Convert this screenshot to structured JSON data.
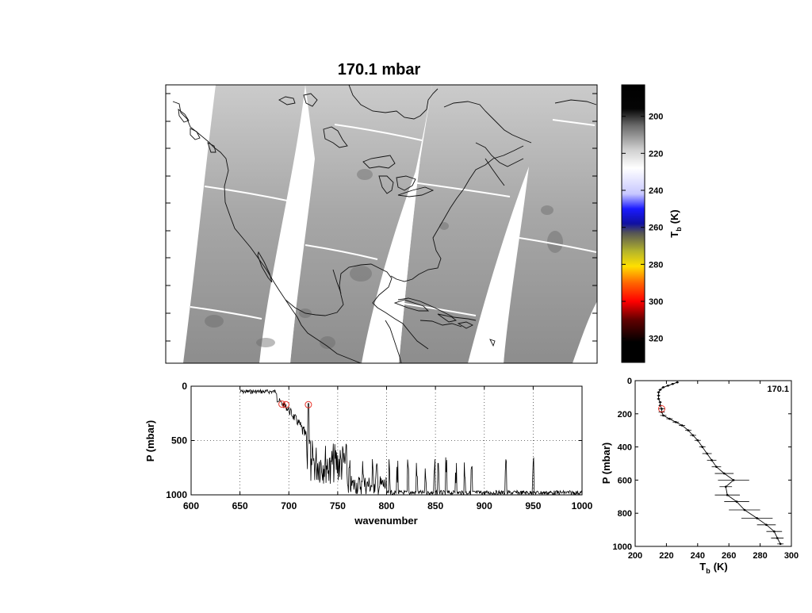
{
  "title": "170.1 mbar",
  "colors": {
    "background": "#ffffff",
    "swath_gray": "#9a9a9a",
    "marker": "#e8352b",
    "line": "#000000"
  },
  "colorbar": {
    "label_main": "T",
    "label_sub": "b",
    "label_unit": "(K)",
    "ticks": [
      "200",
      "220",
      "240",
      "260",
      "280",
      "300",
      "320"
    ],
    "range": [
      183,
      333
    ],
    "stops": [
      {
        "v": 183,
        "c": "#000000"
      },
      {
        "v": 196,
        "c": "#050505"
      },
      {
        "v": 205,
        "c": "#6a6a6a"
      },
      {
        "v": 218,
        "c": "#cfcfcf"
      },
      {
        "v": 228,
        "c": "#ffffff"
      },
      {
        "v": 242,
        "c": "#c7c7ff"
      },
      {
        "v": 250,
        "c": "#1a1aff"
      },
      {
        "v": 258,
        "c": "#1010a0"
      },
      {
        "v": 263,
        "c": "#555555"
      },
      {
        "v": 273,
        "c": "#b5b52a"
      },
      {
        "v": 281,
        "c": "#ffe000"
      },
      {
        "v": 290,
        "c": "#ff6600"
      },
      {
        "v": 300,
        "c": "#ff0000"
      },
      {
        "v": 310,
        "c": "#600000"
      },
      {
        "v": 322,
        "c": "#000000"
      },
      {
        "v": 333,
        "c": "#000000"
      }
    ]
  },
  "chart_data": [
    {
      "type": "heatmap",
      "name": "map",
      "title": "170.1 mbar",
      "description_units": "brightness temperature (K)",
      "value_range": [
        214,
        228
      ],
      "orbit_swaths": 4,
      "grid": false
    },
    {
      "type": "line",
      "name": "weighting-peaks",
      "xlabel": "wavenumber",
      "ylabel": "P (mbar)",
      "xlim": [
        600,
        1000
      ],
      "ylim": [
        1000,
        0
      ],
      "xticks": [
        "600",
        "650",
        "700",
        "750",
        "800",
        "850",
        "900",
        "950",
        "1000"
      ],
      "yticks": [
        "0",
        "500",
        "1000"
      ],
      "grid": true,
      "highlight_points": [
        {
          "x": 693,
          "y": 165
        },
        {
          "x": 697,
          "y": 170
        },
        {
          "x": 720,
          "y": 170
        }
      ]
    },
    {
      "type": "line",
      "name": "tb-profile",
      "xlabel_main": "T",
      "xlabel_sub": "b",
      "xlabel_unit": "(K)",
      "ylabel": "P (mbar)",
      "xlim": [
        200,
        300
      ],
      "ylim": [
        1000,
        0
      ],
      "xticks": [
        "200",
        "220",
        "240",
        "260",
        "280",
        "300"
      ],
      "yticks": [
        "0",
        "200",
        "400",
        "600",
        "800",
        "1000"
      ],
      "annotation": "170.1",
      "grid": false,
      "highlight_point": {
        "x": 217,
        "y": 170
      },
      "profile": [
        {
          "p": 10,
          "t": 227,
          "e": 1
        },
        {
          "p": 20,
          "t": 224,
          "e": 1
        },
        {
          "p": 30,
          "t": 221,
          "e": 1
        },
        {
          "p": 40,
          "t": 218,
          "e": 1
        },
        {
          "p": 55,
          "t": 216,
          "e": 1
        },
        {
          "p": 70,
          "t": 215,
          "e": 1
        },
        {
          "p": 90,
          "t": 215,
          "e": 1
        },
        {
          "p": 110,
          "t": 215,
          "e": 1
        },
        {
          "p": 130,
          "t": 216,
          "e": 1
        },
        {
          "p": 150,
          "t": 216,
          "e": 1
        },
        {
          "p": 170,
          "t": 217,
          "e": 2
        },
        {
          "p": 190,
          "t": 217,
          "e": 2
        },
        {
          "p": 210,
          "t": 218,
          "e": 2
        },
        {
          "p": 230,
          "t": 222,
          "e": 2
        },
        {
          "p": 250,
          "t": 226,
          "e": 2
        },
        {
          "p": 270,
          "t": 230,
          "e": 2
        },
        {
          "p": 300,
          "t": 234,
          "e": 2
        },
        {
          "p": 330,
          "t": 237,
          "e": 2
        },
        {
          "p": 360,
          "t": 240,
          "e": 2
        },
        {
          "p": 400,
          "t": 243,
          "e": 2
        },
        {
          "p": 440,
          "t": 246,
          "e": 3
        },
        {
          "p": 480,
          "t": 249,
          "e": 3
        },
        {
          "p": 520,
          "t": 252,
          "e": 3
        },
        {
          "p": 560,
          "t": 257,
          "e": 6
        },
        {
          "p": 600,
          "t": 263,
          "e": 10
        },
        {
          "p": 640,
          "t": 258,
          "e": 4
        },
        {
          "p": 690,
          "t": 259,
          "e": 8
        },
        {
          "p": 730,
          "t": 265,
          "e": 8
        },
        {
          "p": 780,
          "t": 270,
          "e": 10
        },
        {
          "p": 830,
          "t": 278,
          "e": 10
        },
        {
          "p": 870,
          "t": 284,
          "e": 6
        },
        {
          "p": 910,
          "t": 289,
          "e": 5
        },
        {
          "p": 950,
          "t": 291,
          "e": 4
        },
        {
          "p": 985,
          "t": 293,
          "e": 2
        }
      ]
    }
  ]
}
